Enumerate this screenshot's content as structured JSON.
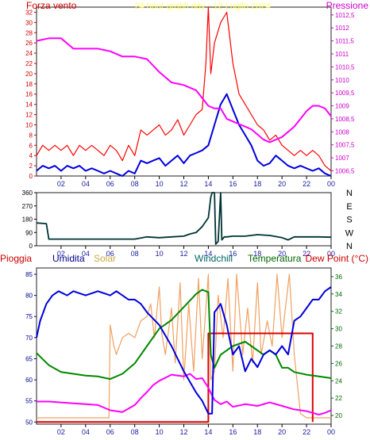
{
  "chart_data": [
    {
      "type": "line",
      "title": "24 hour graph day - 12 Luglio 2024",
      "left_label": "Forza vento",
      "right_label": "Pressione",
      "x_ticks": [
        "02",
        "04",
        "06",
        "08",
        "10",
        "12",
        "14",
        "16",
        "18",
        "20",
        "22",
        "00"
      ],
      "y_left_ticks": [
        "0",
        "2",
        "4",
        "6",
        "8",
        "10",
        "12",
        "14",
        "16",
        "18",
        "20",
        "22",
        "24",
        "26",
        "28",
        "30",
        "32"
      ],
      "y_left_range": [
        0,
        33
      ],
      "y_right_ticks": [
        "1006,5",
        "1007",
        "1007,5",
        "1008",
        "1008,5",
        "1009",
        "1009,5",
        "1010",
        "1010,5",
        "1011",
        "1011,5",
        "1012",
        "1012,5"
      ],
      "y_right_range": [
        1006.3,
        1012.8
      ],
      "colors": {
        "gust": "#ff0000",
        "wind": "#0000dd",
        "pressure": "#ff00ff",
        "left_axis": "#d00000",
        "right_axis": "#cc00cc",
        "title": "#ffff66"
      },
      "series": [
        {
          "key": "gust",
          "axis": "left",
          "x": [
            0,
            0.5,
            1,
            1.5,
            2,
            2.5,
            3,
            3.5,
            4,
            4.5,
            5,
            5.5,
            6,
            6.5,
            7,
            7.5,
            8,
            8.5,
            9,
            9.5,
            10,
            10.5,
            11,
            11.5,
            12,
            12.5,
            13,
            13.5,
            13.8,
            14,
            14.2,
            14.5,
            15,
            15.5,
            16,
            16.5,
            17,
            17.5,
            18,
            18.5,
            19,
            19.5,
            20,
            20.5,
            21,
            21.5,
            22,
            22.5,
            23,
            23.5,
            24
          ],
          "y": [
            4,
            6,
            5,
            6,
            5,
            6,
            4,
            6,
            5,
            6,
            5,
            4,
            6,
            5,
            3,
            6,
            4,
            9,
            8,
            9,
            10,
            8,
            9,
            11,
            8,
            10,
            12,
            13,
            22,
            33,
            20,
            26,
            30,
            32,
            22,
            16,
            14,
            12,
            10,
            9,
            7,
            8,
            6,
            5,
            4,
            5,
            4,
            5,
            4,
            2,
            1
          ]
        },
        {
          "key": "wind",
          "axis": "left",
          "x": [
            0,
            0.5,
            1,
            1.5,
            2,
            2.5,
            3,
            3.5,
            4,
            4.5,
            5,
            5.5,
            6,
            6.5,
            7,
            7.5,
            8,
            8.5,
            9,
            9.5,
            10,
            10.5,
            11,
            11.5,
            12,
            12.5,
            13,
            13.5,
            14,
            14.5,
            15,
            15.5,
            16,
            16.5,
            17,
            17.5,
            18,
            18.5,
            19,
            19.5,
            20,
            20.5,
            21,
            21.5,
            22,
            22.5,
            23,
            23.5,
            24
          ],
          "y": [
            1,
            2,
            1.5,
            2,
            1,
            2,
            1.5,
            2,
            1,
            1.5,
            1,
            0.5,
            1,
            0.5,
            0,
            1,
            0.5,
            3,
            2.5,
            3,
            3.5,
            2,
            3,
            4,
            2.5,
            4,
            4.5,
            5,
            6,
            10,
            14,
            16,
            13,
            10,
            8,
            6,
            3,
            2,
            2.5,
            4,
            3,
            2,
            1.5,
            2,
            1.5,
            1,
            1.5,
            0.5,
            0
          ]
        },
        {
          "key": "pressure",
          "axis": "right",
          "x": [
            0,
            1,
            2,
            3,
            4,
            5,
            6,
            7,
            8,
            9,
            10,
            11,
            12,
            13,
            13.5,
            14,
            14.5,
            15,
            15.5,
            16,
            16.5,
            17,
            17.5,
            18,
            18.5,
            19,
            19.5,
            20,
            20.5,
            21,
            21.5,
            22,
            22.5,
            23,
            23.5,
            24
          ],
          "y": [
            1011.5,
            1011.6,
            1011.6,
            1011.2,
            1011.2,
            1011.2,
            1011.1,
            1010.9,
            1010.9,
            1010.8,
            1010.3,
            1009.9,
            1009.8,
            1009.6,
            1009.3,
            1009.0,
            1008.9,
            1008.9,
            1008.5,
            1008.4,
            1008.3,
            1008.2,
            1008.1,
            1007.9,
            1007.7,
            1007.6,
            1007.7,
            1007.8,
            1008.0,
            1008.2,
            1008.5,
            1008.8,
            1009.0,
            1009.0,
            1008.9,
            1008.6
          ]
        }
      ]
    },
    {
      "type": "line",
      "x_ticks": [
        "02",
        "04",
        "06",
        "08",
        "10",
        "12",
        "14",
        "16",
        "18",
        "20",
        "22",
        "00"
      ],
      "y_left_ticks": [
        "0",
        "90",
        "180",
        "270",
        "360"
      ],
      "y_left_range": [
        0,
        360
      ],
      "direction_labels": [
        "N",
        "W",
        "S",
        "E",
        "N"
      ],
      "colors": {
        "direction": "#003333"
      },
      "series": [
        {
          "key": "direction",
          "x": [
            0,
            0.8,
            1,
            2,
            4,
            6,
            7,
            8,
            9,
            10,
            11,
            12,
            12.5,
            13,
            13.5,
            14,
            14.2,
            14.3,
            14.5,
            14.6,
            14.8,
            15,
            15.1,
            15.3,
            15.5,
            16,
            17,
            18,
            19,
            20,
            20.5,
            21,
            22,
            23,
            24
          ],
          "y": [
            155,
            150,
            45,
            45,
            45,
            45,
            45,
            45,
            60,
            55,
            60,
            65,
            80,
            90,
            130,
            190,
            330,
            360,
            360,
            10,
            30,
            360,
            40,
            60,
            60,
            65,
            65,
            75,
            70,
            55,
            40,
            60,
            60,
            60,
            58
          ]
        }
      ]
    },
    {
      "type": "line",
      "labels": [
        "Pioggia",
        "Umidita",
        "Solar",
        "Windchill",
        "Temperatura",
        "Dew Point (°C)"
      ],
      "x_ticks": [
        "02",
        "04",
        "06",
        "08",
        "10",
        "12",
        "14",
        "16",
        "18",
        "20",
        "22",
        "00"
      ],
      "y_left_ticks": [
        "50",
        "55",
        "60",
        "65",
        "70",
        "75",
        "80",
        "85"
      ],
      "y_left_range": [
        49.5,
        86.5
      ],
      "y_right_ticks": [
        "20",
        "22",
        "24",
        "26",
        "28",
        "30",
        "32",
        "34",
        "36"
      ],
      "y_right_range": [
        19,
        37
      ],
      "colors": {
        "rain": "#dd0000",
        "humidity": "#0000dd",
        "solar": "#f0a060",
        "temperature": "#008800",
        "dewpoint": "#ff00ff",
        "left_axis": "#00008b",
        "right_axis": "#006600",
        "rain_label": "#cc0000",
        "humidity_label": "#00008b",
        "solar_label": "#ccaa44",
        "windchill_label": "#006666",
        "temperature_label": "#006600",
        "dewpoint_label": "#cc0000"
      },
      "series": [
        {
          "key": "humidity",
          "axis": "left",
          "x": [
            0,
            0.3,
            0.8,
            1.3,
            1.8,
            2.5,
            3,
            4,
            5,
            6,
            6.5,
            7,
            7.5,
            8,
            8.5,
            9,
            10,
            11,
            12,
            13,
            13.5,
            14,
            14.3,
            14.5,
            15,
            15.5,
            16,
            16.5,
            17,
            17.5,
            18,
            18.5,
            19,
            19.5,
            20,
            20.5,
            21,
            21.5,
            22,
            22.5,
            23,
            23.5,
            24
          ],
          "y": [
            70,
            74,
            78,
            80,
            81,
            80,
            81,
            80,
            81,
            80,
            81,
            80,
            79,
            79,
            78,
            76,
            73,
            68,
            62,
            57,
            55,
            52,
            52,
            76,
            78,
            73,
            66,
            68,
            62,
            65,
            63,
            66,
            67,
            66,
            68,
            66,
            74,
            75,
            77,
            79,
            79,
            81,
            82
          ]
        },
        {
          "key": "solar",
          "axis": "left",
          "x": [
            0,
            5.9,
            6,
            6.3,
            6.5,
            7,
            7.5,
            8,
            8.5,
            9,
            9.3,
            9.6,
            10,
            10.2,
            10.5,
            11,
            11.3,
            11.7,
            12,
            12.4,
            12.8,
            13.2,
            13.5,
            14,
            14.2,
            14.5,
            14.8,
            15.2,
            15.6,
            16,
            16.3,
            16.8,
            17.2,
            17.6,
            18,
            18.3,
            18.8,
            19.2,
            19.6,
            20,
            20.6,
            21,
            21.5,
            22,
            22.2,
            24
          ],
          "y": [
            51,
            51,
            73,
            68,
            66,
            70,
            71,
            70,
            74,
            75,
            78,
            70,
            82,
            71,
            66,
            77,
            64,
            83,
            60,
            78,
            62,
            84,
            65,
            85,
            60,
            62,
            80,
            70,
            84,
            62,
            85,
            66,
            77,
            64,
            83,
            66,
            74,
            68,
            85,
            70,
            85,
            66,
            52,
            51,
            51,
            51
          ]
        },
        {
          "key": "rain",
          "axis": "left",
          "step": true,
          "x": [
            0,
            14,
            14,
            22.5,
            22.5
          ],
          "y": [
            50,
            50,
            71,
            71,
            50
          ]
        },
        {
          "key": "temperature",
          "axis": "right",
          "x": [
            0,
            0.5,
            1,
            2,
            3,
            4,
            5,
            6,
            7,
            8,
            9,
            10,
            11,
            12,
            13,
            13.5,
            14,
            14.2,
            14.5,
            15,
            16,
            17,
            18,
            18.5,
            19,
            19.5,
            20,
            20.5,
            21,
            22,
            23,
            24
          ],
          "y": [
            27.2,
            26.5,
            25.8,
            25,
            24.8,
            24.6,
            24.5,
            24.2,
            24.8,
            26,
            28,
            30,
            31,
            32.5,
            34,
            34.5,
            34.2,
            27,
            25.5,
            27,
            28,
            28.5,
            27.5,
            27,
            27.5,
            27,
            25.5,
            25.5,
            25,
            24.7,
            24.5,
            24.3
          ]
        },
        {
          "key": "dewpoint",
          "axis": "right",
          "x": [
            0,
            1,
            2,
            3,
            4,
            5,
            6,
            7,
            8,
            8.5,
            9,
            9.5,
            10,
            11,
            12,
            12.5,
            13,
            13.5,
            14,
            14.3,
            14.5,
            15,
            15.5,
            16,
            17,
            18,
            19,
            20,
            21,
            22,
            23,
            23.5,
            24
          ],
          "y": [
            21.6,
            21.6,
            21.5,
            21.4,
            21.3,
            21.2,
            20.6,
            20.4,
            21.2,
            22,
            22.7,
            23.5,
            24,
            24.7,
            24.5,
            24.8,
            24.2,
            24.3,
            23.2,
            22.3,
            21.8,
            21.3,
            21.6,
            21.0,
            21.3,
            21.1,
            21.5,
            21.1,
            20.7,
            20.5,
            20.1,
            20.3,
            20.6
          ]
        }
      ]
    }
  ]
}
